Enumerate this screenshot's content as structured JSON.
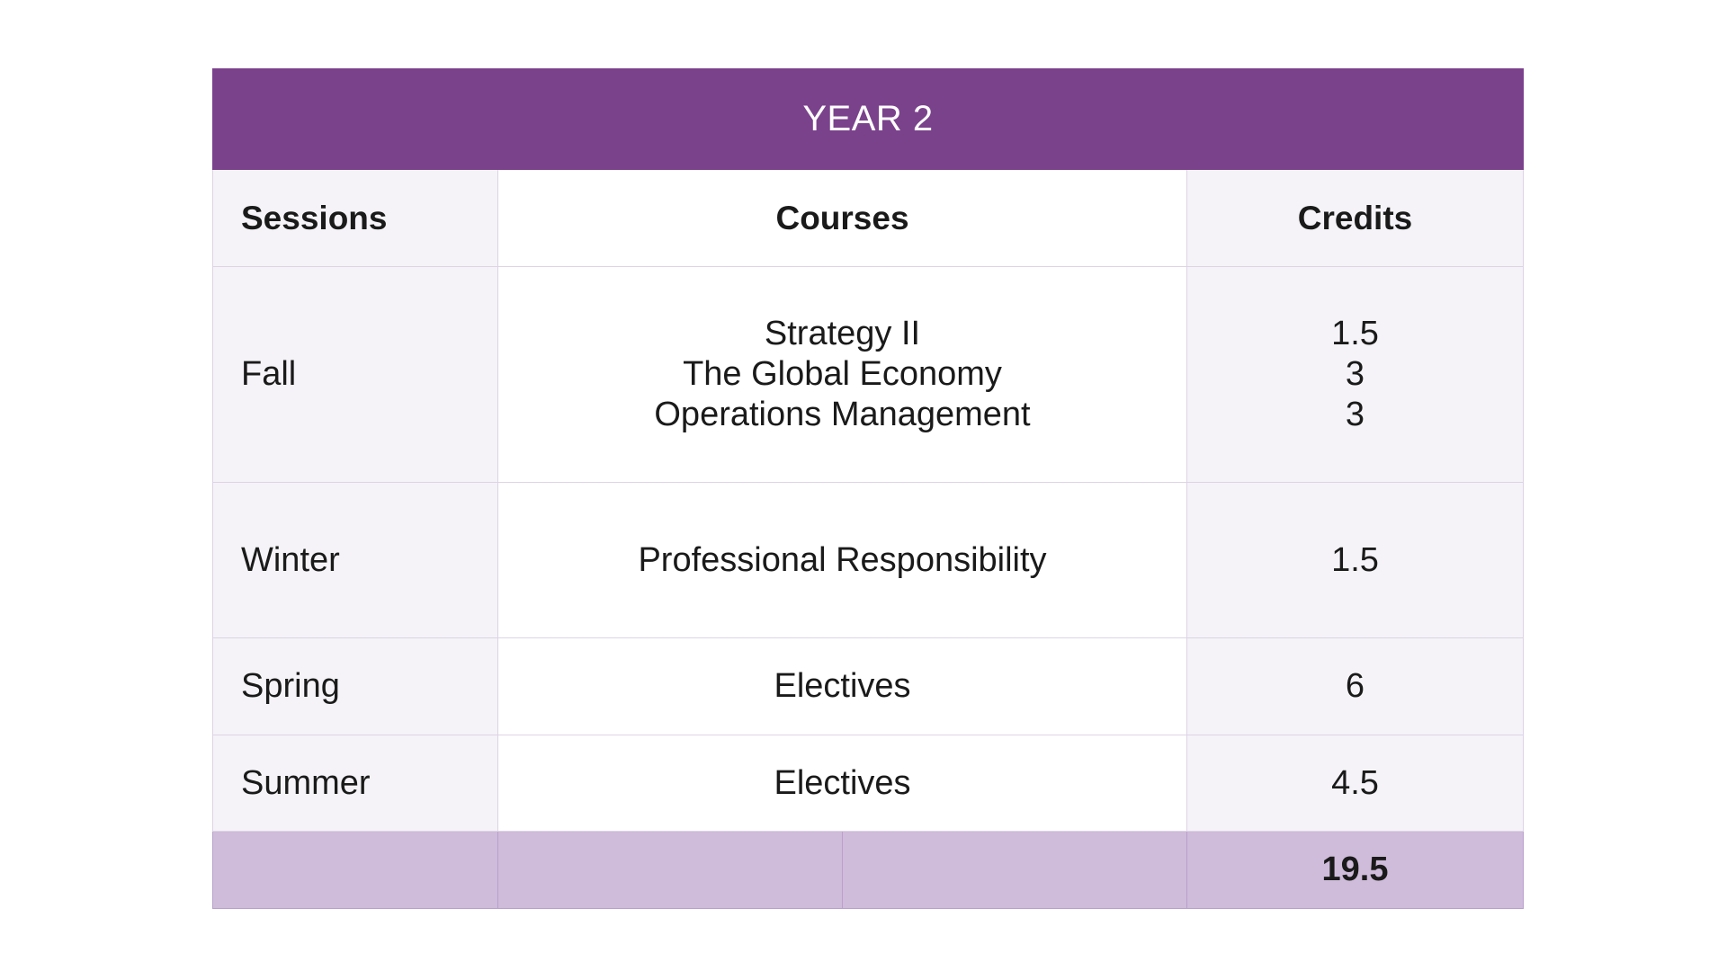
{
  "colors": {
    "header_purple": "#7b428c",
    "footer_lilac": "#cfbbda",
    "row_tint": "#f5f3f7",
    "white": "#ffffff"
  },
  "table": {
    "title": "YEAR 2",
    "columns": [
      "Sessions",
      "Courses",
      "Credits"
    ],
    "rows": [
      {
        "session": "Fall",
        "courses": [
          "Strategy II",
          "The Global Economy",
          "Operations Management"
        ],
        "credits": [
          "1.5",
          "3",
          "3"
        ]
      },
      {
        "session": "Winter",
        "courses": [
          "Professional Responsibility"
        ],
        "credits": [
          "1.5"
        ]
      },
      {
        "session": "Spring",
        "courses": [
          "Electives"
        ],
        "credits": [
          "6"
        ]
      },
      {
        "session": "Summer",
        "courses": [
          "Electives"
        ],
        "credits": [
          "4.5"
        ]
      }
    ],
    "total_credits": "19.5"
  }
}
